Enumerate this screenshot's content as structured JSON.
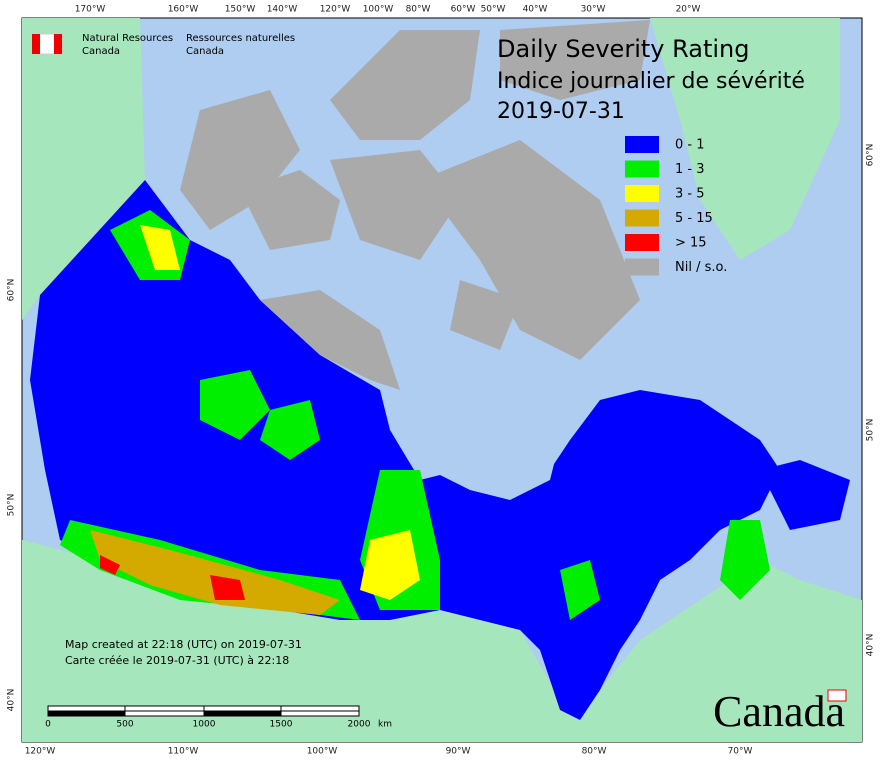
{
  "header": {
    "agency_en": [
      "Natural Resources",
      "Canada"
    ],
    "agency_fr": [
      "Ressources naturelles",
      "Canada"
    ]
  },
  "title": {
    "en": "Daily Severity Rating",
    "fr": "Indice journalier de sévérité",
    "date": "2019-07-31"
  },
  "legend": [
    {
      "label": "0 - 1",
      "color": "#0000ff"
    },
    {
      "label": "1 - 3",
      "color": "#00ee00"
    },
    {
      "label": "3 - 5",
      "color": "#ffff00"
    },
    {
      "label": "5 - 15",
      "color": "#d4aa00"
    },
    {
      "label": "> 15",
      "color": "#ff0000"
    },
    {
      "label": "Nil / s.o.",
      "color": "#aaaaaa"
    }
  ],
  "graticule": {
    "top": [
      "170°W",
      "160°W",
      "150°W",
      "140°W",
      "120°W",
      "100°W",
      "80°W",
      "60°W",
      "50°W",
      "40°W",
      "30°W",
      "20°W"
    ],
    "bottom": [
      "120°W",
      "110°W",
      "100°W",
      "90°W",
      "80°W",
      "70°W"
    ],
    "left": [
      "60°N",
      "50°N",
      "40°N"
    ],
    "right": [
      "60°N",
      "50°N",
      "40°N"
    ]
  },
  "footer": {
    "created_en": "Map created at 22:18 (UTC) on 2019-07-31",
    "created_fr": "Carte créée le 2019-07-31 (UTC) à 22:18"
  },
  "scale_bar": {
    "labels": [
      "0",
      "500",
      "1000",
      "1500",
      "2000"
    ],
    "unit": "km"
  },
  "wordmark": "Canada"
}
